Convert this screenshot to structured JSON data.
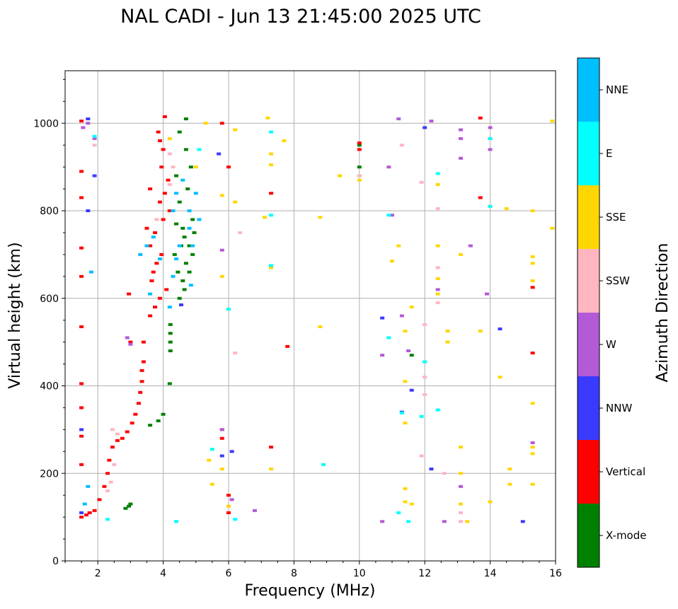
{
  "chart_data": {
    "type": "scatter",
    "title": "NAL CADI - Jun 13 21:45:00 2025 UTC",
    "xlabel": "Frequency (MHz)",
    "ylabel": "Virtual height (km)",
    "xlim": [
      1,
      16
    ],
    "ylim": [
      0,
      1120
    ],
    "xticks": [
      2,
      4,
      6,
      8,
      10,
      12,
      14,
      16
    ],
    "yticks": [
      0,
      200,
      400,
      600,
      800,
      1000
    ],
    "grid": true,
    "colorbar": {
      "label": "Azimuth Direction",
      "categories": [
        {
          "name": "X-mode",
          "color": "#008000"
        },
        {
          "name": "Vertical",
          "color": "#ff0000"
        },
        {
          "name": "NNW",
          "color": "#3a3aff"
        },
        {
          "name": "W",
          "color": "#b35ad6"
        },
        {
          "name": "SSW",
          "color": "#ffb6c1"
        },
        {
          "name": "SSE",
          "color": "#ffd700"
        },
        {
          "name": "E",
          "color": "#00ffff"
        },
        {
          "name": "NNE",
          "color": "#00bfff"
        }
      ]
    },
    "series": [
      {
        "name": "X-mode",
        "points": [
          [
            4.22,
            540
          ],
          [
            4.22,
            520
          ],
          [
            4.22,
            500
          ],
          [
            4.22,
            480
          ],
          [
            4.2,
            405
          ],
          [
            4.0,
            335
          ],
          [
            3.85,
            320
          ],
          [
            3.6,
            310
          ],
          [
            3.0,
            130
          ],
          [
            2.95,
            125
          ],
          [
            2.85,
            120
          ],
          [
            4.5,
            600
          ],
          [
            4.6,
            640
          ],
          [
            4.7,
            680
          ],
          [
            4.8,
            720
          ],
          [
            4.6,
            760
          ],
          [
            4.9,
            780
          ],
          [
            4.5,
            820
          ],
          [
            4.75,
            850
          ],
          [
            4.4,
            880
          ],
          [
            4.85,
            900
          ],
          [
            4.7,
            940
          ],
          [
            4.5,
            980
          ],
          [
            4.7,
            1010
          ],
          [
            4.35,
            700
          ],
          [
            4.55,
            720
          ],
          [
            4.9,
            700
          ],
          [
            4.65,
            740
          ],
          [
            4.45,
            660
          ],
          [
            4.8,
            660
          ],
          [
            4.65,
            620
          ],
          [
            4.95,
            750
          ],
          [
            4.4,
            770
          ],
          [
            10.0,
            950
          ],
          [
            10.0,
            900
          ],
          [
            10.0,
            880
          ],
          [
            11.6,
            470
          ]
        ]
      },
      {
        "name": "Vertical",
        "points": [
          [
            1.5,
            1005
          ],
          [
            1.5,
            890
          ],
          [
            1.5,
            830
          ],
          [
            1.5,
            715
          ],
          [
            1.5,
            650
          ],
          [
            1.5,
            535
          ],
          [
            1.5,
            405
          ],
          [
            1.5,
            350
          ],
          [
            1.5,
            285
          ],
          [
            1.5,
            220
          ],
          [
            1.5,
            100
          ],
          [
            1.65,
            105
          ],
          [
            1.75,
            110
          ],
          [
            1.9,
            115
          ],
          [
            2.05,
            140
          ],
          [
            2.2,
            170
          ],
          [
            2.3,
            200
          ],
          [
            2.35,
            230
          ],
          [
            2.45,
            260
          ],
          [
            2.6,
            275
          ],
          [
            2.75,
            280
          ],
          [
            2.9,
            295
          ],
          [
            3.05,
            315
          ],
          [
            3.15,
            335
          ],
          [
            3.25,
            360
          ],
          [
            3.3,
            385
          ],
          [
            3.35,
            410
          ],
          [
            3.35,
            435
          ],
          [
            3.4,
            455
          ],
          [
            3.0,
            500
          ],
          [
            2.95,
            610
          ],
          [
            3.4,
            500
          ],
          [
            3.6,
            560
          ],
          [
            3.75,
            580
          ],
          [
            3.9,
            600
          ],
          [
            3.65,
            640
          ],
          [
            3.8,
            680
          ],
          [
            3.95,
            700
          ],
          [
            3.6,
            720
          ],
          [
            3.75,
            750
          ],
          [
            4.0,
            780
          ],
          [
            4.2,
            800
          ],
          [
            3.9,
            820
          ],
          [
            4.05,
            840
          ],
          [
            3.6,
            850
          ],
          [
            4.15,
            870
          ],
          [
            3.95,
            900
          ],
          [
            4.0,
            940
          ],
          [
            3.9,
            960
          ],
          [
            4.05,
            1015
          ],
          [
            3.85,
            980
          ],
          [
            3.5,
            760
          ],
          [
            3.7,
            660
          ],
          [
            4.1,
            620
          ],
          [
            5.8,
            1000
          ],
          [
            6.0,
            900
          ],
          [
            5.8,
            300
          ],
          [
            5.8,
            280
          ],
          [
            7.3,
            260
          ],
          [
            7.3,
            840
          ],
          [
            7.8,
            490
          ],
          [
            6.0,
            150
          ],
          [
            6.0,
            110
          ],
          [
            10.0,
            955
          ],
          [
            10.0,
            940
          ],
          [
            13.7,
            1012
          ],
          [
            13.7,
            830
          ],
          [
            15.3,
            625
          ],
          [
            15.3,
            475
          ]
        ]
      },
      {
        "name": "NNW",
        "points": [
          [
            1.7,
            1010
          ],
          [
            1.9,
            880
          ],
          [
            1.7,
            800
          ],
          [
            1.5,
            300
          ],
          [
            1.5,
            110
          ],
          [
            4.55,
            585
          ],
          [
            5.7,
            930
          ],
          [
            5.8,
            240
          ],
          [
            6.1,
            250
          ],
          [
            11.3,
            340
          ],
          [
            11.6,
            390
          ],
          [
            12.0,
            990
          ],
          [
            12.2,
            210
          ],
          [
            14.3,
            530
          ],
          [
            15.0,
            90
          ],
          [
            10.7,
            555
          ]
        ]
      },
      {
        "name": "W",
        "points": [
          [
            1.7,
            1000
          ],
          [
            1.9,
            965
          ],
          [
            1.55,
            990
          ],
          [
            2.9,
            510
          ],
          [
            3.0,
            495
          ],
          [
            5.8,
            300
          ],
          [
            5.8,
            710
          ],
          [
            6.8,
            115
          ],
          [
            6.1,
            140
          ],
          [
            10.7,
            470
          ],
          [
            10.7,
            90
          ],
          [
            11.2,
            1010
          ],
          [
            11.0,
            790
          ],
          [
            11.3,
            560
          ],
          [
            11.5,
            480
          ],
          [
            12.2,
            1005
          ],
          [
            13.1,
            985
          ],
          [
            13.1,
            965
          ],
          [
            13.1,
            920
          ],
          [
            13.4,
            720
          ],
          [
            13.9,
            610
          ],
          [
            14.0,
            990
          ],
          [
            14.0,
            965
          ],
          [
            14.0,
            940
          ],
          [
            12.4,
            620
          ],
          [
            12.6,
            90
          ],
          [
            13.1,
            170
          ],
          [
            15.3,
            270
          ],
          [
            10.9,
            900
          ]
        ]
      },
      {
        "name": "SSW",
        "points": [
          [
            1.9,
            950
          ],
          [
            2.4,
            180
          ],
          [
            2.5,
            220
          ],
          [
            2.3,
            160
          ],
          [
            2.45,
            300
          ],
          [
            2.6,
            290
          ],
          [
            4.2,
            930
          ],
          [
            4.3,
            900
          ],
          [
            4.2,
            860
          ],
          [
            3.8,
            780
          ],
          [
            6.35,
            750
          ],
          [
            6.2,
            475
          ],
          [
            10.0,
            880
          ],
          [
            11.3,
            950
          ],
          [
            11.9,
            865
          ],
          [
            12.0,
            540
          ],
          [
            12.0,
            420
          ],
          [
            12.0,
            380
          ],
          [
            12.4,
            805
          ],
          [
            12.4,
            670
          ],
          [
            12.4,
            590
          ],
          [
            13.1,
            110
          ],
          [
            13.1,
            90
          ],
          [
            12.6,
            200
          ],
          [
            11.9,
            240
          ]
        ]
      },
      {
        "name": "SSE",
        "points": [
          [
            4.2,
            965
          ],
          [
            5.3,
            1000
          ],
          [
            5.0,
            900
          ],
          [
            6.2,
            985
          ],
          [
            7.2,
            1012
          ],
          [
            7.3,
            930
          ],
          [
            7.3,
            905
          ],
          [
            7.3,
            670
          ],
          [
            7.3,
            210
          ],
          [
            7.1,
            785
          ],
          [
            7.7,
            960
          ],
          [
            6.2,
            820
          ],
          [
            5.8,
            835
          ],
          [
            5.8,
            650
          ],
          [
            8.8,
            785
          ],
          [
            8.8,
            535
          ],
          [
            9.4,
            880
          ],
          [
            5.4,
            230
          ],
          [
            5.5,
            175
          ],
          [
            5.8,
            210
          ],
          [
            6.0,
            125
          ],
          [
            10.0,
            870
          ],
          [
            11.2,
            720
          ],
          [
            11.0,
            685
          ],
          [
            11.4,
            525
          ],
          [
            11.4,
            410
          ],
          [
            11.4,
            315
          ],
          [
            11.4,
            165
          ],
          [
            11.4,
            135
          ],
          [
            12.4,
            860
          ],
          [
            12.4,
            720
          ],
          [
            12.4,
            645
          ],
          [
            12.4,
            610
          ],
          [
            12.7,
            525
          ],
          [
            12.7,
            500
          ],
          [
            13.1,
            700
          ],
          [
            13.1,
            260
          ],
          [
            13.1,
            200
          ],
          [
            13.1,
            130
          ],
          [
            13.3,
            90
          ],
          [
            13.7,
            525
          ],
          [
            14.0,
            810
          ],
          [
            14.0,
            135
          ],
          [
            14.3,
            420
          ],
          [
            14.5,
            805
          ],
          [
            14.6,
            210
          ],
          [
            14.6,
            175
          ],
          [
            15.3,
            800
          ],
          [
            15.3,
            695
          ],
          [
            15.3,
            680
          ],
          [
            15.3,
            640
          ],
          [
            15.3,
            360
          ],
          [
            15.3,
            260
          ],
          [
            15.3,
            245
          ],
          [
            15.3,
            175
          ],
          [
            15.9,
            1005
          ],
          [
            15.9,
            760
          ],
          [
            11.6,
            580
          ],
          [
            11.6,
            130
          ]
        ]
      },
      {
        "name": "E",
        "points": [
          [
            1.9,
            970
          ],
          [
            2.3,
            95
          ],
          [
            4.4,
            90
          ],
          [
            5.1,
            940
          ],
          [
            5.5,
            255
          ],
          [
            6.0,
            575
          ],
          [
            6.2,
            95
          ],
          [
            7.3,
            980
          ],
          [
            7.3,
            790
          ],
          [
            7.3,
            675
          ],
          [
            8.9,
            220
          ],
          [
            10.9,
            510
          ],
          [
            11.2,
            110
          ],
          [
            11.5,
            90
          ],
          [
            11.3,
            338
          ],
          [
            12.0,
            455
          ],
          [
            12.4,
            885
          ],
          [
            12.4,
            345
          ],
          [
            14.0,
            965
          ],
          [
            14.0,
            810
          ],
          [
            11.9,
            330
          ],
          [
            10.9,
            790
          ]
        ]
      },
      {
        "name": "NNE",
        "points": [
          [
            1.8,
            660
          ],
          [
            1.6,
            130
          ],
          [
            1.7,
            170
          ],
          [
            3.3,
            700
          ],
          [
            3.5,
            720
          ],
          [
            3.7,
            740
          ],
          [
            3.9,
            690
          ],
          [
            3.6,
            610
          ],
          [
            4.4,
            840
          ],
          [
            4.6,
            870
          ],
          [
            4.8,
            800
          ],
          [
            5.0,
            840
          ],
          [
            4.5,
            720
          ],
          [
            4.8,
            760
          ],
          [
            4.3,
            650
          ],
          [
            4.4,
            690
          ],
          [
            4.85,
            630
          ],
          [
            4.2,
            580
          ],
          [
            4.3,
            800
          ],
          [
            5.1,
            780
          ],
          [
            4.9,
            720
          ]
        ]
      }
    ]
  }
}
